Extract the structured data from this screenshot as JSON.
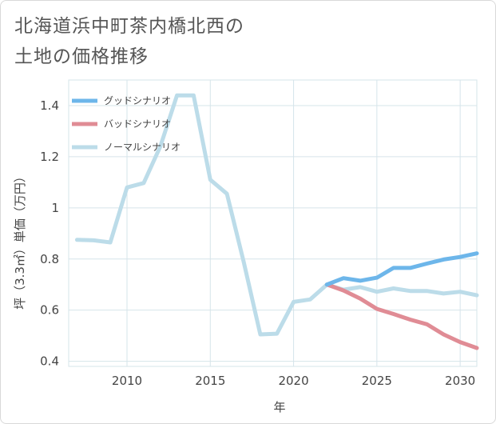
{
  "title": {
    "line1": "北海道浜中町茶内橋北西の",
    "line2": "土地の価格推移"
  },
  "colors": {
    "good": "#6db6ea",
    "bad": "#e08c95",
    "normal": "#bcdce9",
    "grid": "#d6e4ea",
    "axis_text": "#444444"
  },
  "chart_data": {
    "type": "line",
    "title": "北海道浜中町茶内橋北西の土地の価格推移",
    "xlabel": "年",
    "ylabel": "坪（3.3㎡）単価（万円）",
    "xlim": [
      2006.5,
      2031
    ],
    "ylim": [
      0.38,
      1.5
    ],
    "xticks": [
      2010,
      2015,
      2020,
      2025,
      2030
    ],
    "yticks": [
      0.4,
      0.6,
      0.8,
      1,
      1.2,
      1.4
    ],
    "ytick_labels": [
      "0.4",
      "0.6",
      "0.8",
      "1",
      "1.2",
      "1.4"
    ],
    "grid": true,
    "legend_position": "top-left",
    "series": [
      {
        "name": "グッドシナリオ",
        "color_key": "good",
        "x": [
          2022,
          2023,
          2024,
          2025,
          2026,
          2027,
          2028,
          2029,
          2030,
          2031
        ],
        "y": [
          0.7,
          0.725,
          0.715,
          0.727,
          0.765,
          0.765,
          0.782,
          0.798,
          0.808,
          0.822
        ]
      },
      {
        "name": "バッドシナリオ",
        "color_key": "bad",
        "x": [
          2022,
          2023,
          2024,
          2025,
          2026,
          2027,
          2028,
          2029,
          2030,
          2031
        ],
        "y": [
          0.7,
          0.677,
          0.645,
          0.605,
          0.585,
          0.563,
          0.545,
          0.505,
          0.475,
          0.452
        ]
      },
      {
        "name": "ノーマルシナリオ",
        "color_key": "normal",
        "x": [
          2007,
          2008,
          2009,
          2010,
          2011,
          2012,
          2013,
          2014,
          2015,
          2016,
          2017,
          2018,
          2019,
          2020,
          2021,
          2022,
          2023,
          2024,
          2025,
          2026,
          2027,
          2028,
          2029,
          2030,
          2031
        ],
        "y": [
          0.875,
          0.873,
          0.865,
          1.08,
          1.097,
          1.24,
          1.44,
          1.44,
          1.11,
          1.055,
          0.79,
          0.505,
          0.508,
          0.632,
          0.642,
          0.7,
          0.68,
          0.69,
          0.672,
          0.685,
          0.675,
          0.675,
          0.665,
          0.672,
          0.658
        ]
      }
    ]
  }
}
